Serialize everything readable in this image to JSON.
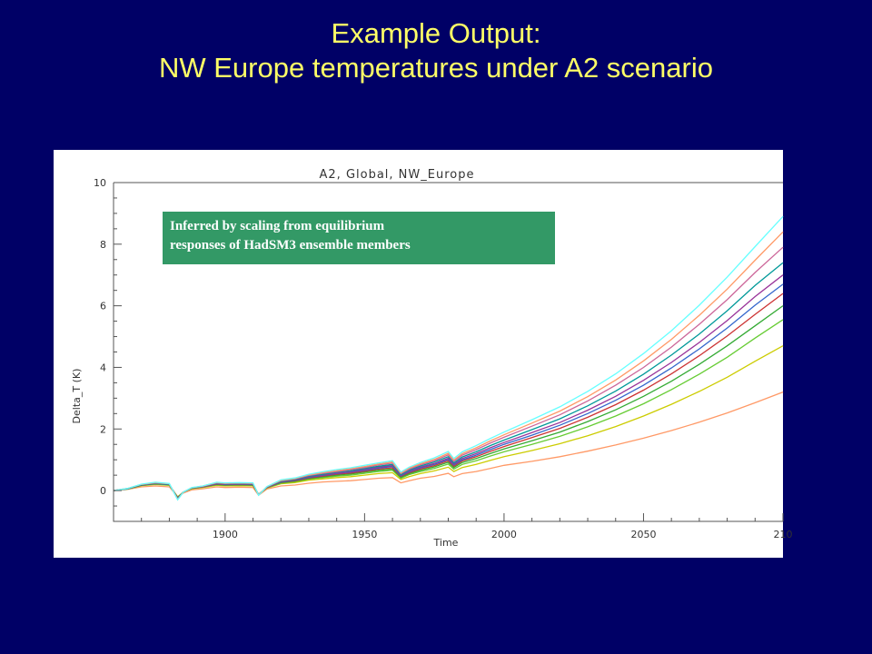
{
  "slide": {
    "title_line1": "Example Output:",
    "title_line2": "NW Europe temperatures under A2 scenario"
  },
  "annotation": {
    "line1": "Inferred by scaling from equilibrium",
    "line2": "responses of HadSM3 ensemble members"
  },
  "chart_data": {
    "type": "line",
    "title": "A2, Global, NW_Europe",
    "xlabel": "Time",
    "ylabel": "Delta_T (K)",
    "xlim": [
      1860,
      2100
    ],
    "ylim": [
      -1,
      10
    ],
    "x_ticks": [
      "1900",
      "1950",
      "2000",
      "2050",
      "210"
    ],
    "y_ticks": [
      "0",
      "2",
      "4",
      "6",
      "8",
      "10"
    ],
    "grid": false,
    "legend": "none",
    "x": [
      1860,
      1865,
      1870,
      1875,
      1880,
      1883,
      1885,
      1888,
      1892,
      1897,
      1900,
      1905,
      1910,
      1912,
      1915,
      1920,
      1925,
      1930,
      1935,
      1940,
      1945,
      1950,
      1955,
      1960,
      1963,
      1966,
      1970,
      1975,
      1980,
      1982,
      1985,
      1990,
      1995,
      2000,
      2010,
      2020,
      2030,
      2040,
      2050,
      2060,
      2070,
      2080,
      2090,
      2100
    ],
    "series": [
      {
        "color": "#ff9966",
        "values": [
          0,
          0.04,
          0.12,
          0.15,
          0.12,
          -0.2,
          -0.08,
          0.02,
          0.06,
          0.12,
          0.1,
          0.11,
          0.1,
          -0.15,
          0.05,
          0.15,
          0.18,
          0.24,
          0.28,
          0.3,
          0.32,
          0.36,
          0.4,
          0.42,
          0.25,
          0.32,
          0.4,
          0.46,
          0.56,
          0.45,
          0.55,
          0.62,
          0.72,
          0.82,
          0.95,
          1.1,
          1.28,
          1.48,
          1.7,
          1.95,
          2.22,
          2.52,
          2.85,
          3.2
        ]
      },
      {
        "color": "#cccc00",
        "values": [
          0,
          0.05,
          0.16,
          0.2,
          0.17,
          -0.2,
          -0.05,
          0.06,
          0.1,
          0.17,
          0.15,
          0.16,
          0.15,
          -0.12,
          0.08,
          0.22,
          0.26,
          0.34,
          0.38,
          0.42,
          0.45,
          0.5,
          0.55,
          0.58,
          0.36,
          0.45,
          0.55,
          0.64,
          0.76,
          0.62,
          0.75,
          0.85,
          0.98,
          1.1,
          1.3,
          1.52,
          1.78,
          2.08,
          2.42,
          2.8,
          3.22,
          3.68,
          4.2,
          4.7
        ]
      },
      {
        "color": "#66cc33",
        "values": [
          0,
          0.05,
          0.17,
          0.21,
          0.18,
          -0.22,
          -0.05,
          0.07,
          0.11,
          0.19,
          0.17,
          0.18,
          0.17,
          -0.12,
          0.09,
          0.24,
          0.29,
          0.37,
          0.42,
          0.47,
          0.5,
          0.56,
          0.62,
          0.66,
          0.4,
          0.52,
          0.62,
          0.72,
          0.86,
          0.7,
          0.85,
          0.97,
          1.12,
          1.26,
          1.5,
          1.76,
          2.07,
          2.42,
          2.82,
          3.28,
          3.78,
          4.33,
          4.95,
          5.55
        ]
      },
      {
        "color": "#33aa33",
        "values": [
          0,
          0.05,
          0.17,
          0.22,
          0.19,
          -0.23,
          -0.05,
          0.07,
          0.12,
          0.2,
          0.18,
          0.19,
          0.18,
          -0.12,
          0.1,
          0.26,
          0.31,
          0.39,
          0.45,
          0.5,
          0.54,
          0.6,
          0.66,
          0.7,
          0.43,
          0.55,
          0.66,
          0.77,
          0.92,
          0.75,
          0.91,
          1.04,
          1.2,
          1.35,
          1.62,
          1.9,
          2.24,
          2.62,
          3.06,
          3.55,
          4.1,
          4.7,
          5.35,
          6.0
        ]
      },
      {
        "color": "#cc3333",
        "values": [
          0,
          0.06,
          0.18,
          0.23,
          0.2,
          -0.24,
          -0.05,
          0.08,
          0.12,
          0.21,
          0.19,
          0.2,
          0.19,
          -0.13,
          0.1,
          0.27,
          0.32,
          0.41,
          0.47,
          0.53,
          0.57,
          0.63,
          0.7,
          0.74,
          0.46,
          0.58,
          0.7,
          0.81,
          0.97,
          0.79,
          0.96,
          1.1,
          1.27,
          1.43,
          1.72,
          2.02,
          2.38,
          2.79,
          3.26,
          3.79,
          4.38,
          5.02,
          5.72,
          6.4
        ]
      },
      {
        "color": "#3366cc",
        "values": [
          0,
          0.06,
          0.18,
          0.23,
          0.2,
          -0.25,
          -0.05,
          0.08,
          0.13,
          0.22,
          0.2,
          0.21,
          0.2,
          -0.13,
          0.11,
          0.28,
          0.34,
          0.43,
          0.49,
          0.55,
          0.6,
          0.66,
          0.73,
          0.78,
          0.48,
          0.61,
          0.73,
          0.85,
          1.01,
          0.83,
          1.0,
          1.15,
          1.33,
          1.5,
          1.8,
          2.12,
          2.5,
          2.93,
          3.42,
          3.98,
          4.6,
          5.28,
          6.02,
          6.7
        ]
      },
      {
        "color": "#993399",
        "values": [
          0,
          0.06,
          0.19,
          0.24,
          0.21,
          -0.26,
          -0.05,
          0.08,
          0.13,
          0.23,
          0.21,
          0.22,
          0.21,
          -0.13,
          0.11,
          0.29,
          0.35,
          0.45,
          0.51,
          0.57,
          0.62,
          0.69,
          0.76,
          0.81,
          0.5,
          0.64,
          0.76,
          0.88,
          1.05,
          0.86,
          1.04,
          1.2,
          1.39,
          1.56,
          1.88,
          2.21,
          2.61,
          3.06,
          3.58,
          4.16,
          4.81,
          5.52,
          6.3,
          7.0
        ]
      },
      {
        "color": "#009999",
        "values": [
          0,
          0.06,
          0.19,
          0.24,
          0.21,
          -0.27,
          -0.05,
          0.08,
          0.14,
          0.24,
          0.22,
          0.23,
          0.22,
          -0.14,
          0.12,
          0.3,
          0.36,
          0.47,
          0.53,
          0.6,
          0.65,
          0.72,
          0.79,
          0.85,
          0.52,
          0.67,
          0.8,
          0.93,
          1.1,
          0.9,
          1.09,
          1.26,
          1.46,
          1.64,
          1.98,
          2.33,
          2.75,
          3.23,
          3.78,
          4.4,
          5.08,
          5.84,
          6.66,
          7.4
        ]
      },
      {
        "color": "#cc6699",
        "values": [
          0,
          0.07,
          0.2,
          0.25,
          0.22,
          -0.28,
          -0.05,
          0.09,
          0.14,
          0.25,
          0.23,
          0.24,
          0.23,
          -0.14,
          0.12,
          0.32,
          0.38,
          0.49,
          0.56,
          0.62,
          0.68,
          0.75,
          0.83,
          0.89,
          0.55,
          0.7,
          0.84,
          0.97,
          1.16,
          0.95,
          1.15,
          1.33,
          1.54,
          1.73,
          2.09,
          2.46,
          2.91,
          3.42,
          4.0,
          4.66,
          5.4,
          6.2,
          7.08,
          7.9
        ]
      },
      {
        "color": "#ff9966",
        "values": [
          0,
          0.07,
          0.2,
          0.26,
          0.22,
          -0.29,
          -0.05,
          0.09,
          0.15,
          0.26,
          0.24,
          0.25,
          0.24,
          -0.14,
          0.13,
          0.33,
          0.39,
          0.51,
          0.58,
          0.65,
          0.71,
          0.78,
          0.86,
          0.93,
          0.57,
          0.73,
          0.87,
          1.01,
          1.21,
          0.99,
          1.2,
          1.39,
          1.61,
          1.81,
          2.19,
          2.58,
          3.05,
          3.59,
          4.21,
          4.91,
          5.69,
          6.54,
          7.48,
          8.4
        ]
      },
      {
        "color": "#66ffff",
        "values": [
          0,
          0.07,
          0.21,
          0.27,
          0.23,
          -0.3,
          -0.05,
          0.1,
          0.15,
          0.27,
          0.25,
          0.26,
          0.25,
          -0.15,
          0.13,
          0.35,
          0.41,
          0.53,
          0.61,
          0.68,
          0.74,
          0.82,
          0.9,
          0.97,
          0.6,
          0.76,
          0.91,
          1.06,
          1.27,
          1.04,
          1.26,
          1.46,
          1.69,
          1.9,
          2.3,
          2.72,
          3.22,
          3.79,
          4.45,
          5.19,
          6.02,
          6.93,
          7.92,
          8.9
        ]
      }
    ]
  }
}
